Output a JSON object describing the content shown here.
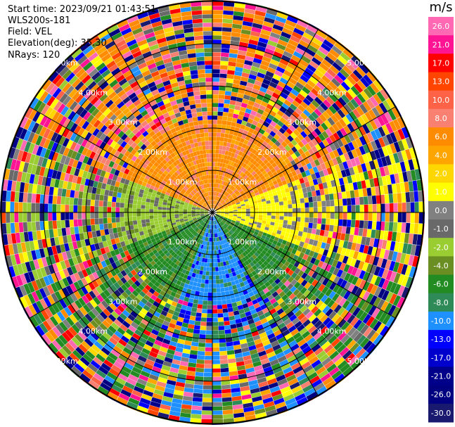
{
  "header": {
    "start_time": "Start time: 2023/09/21 01:43:51",
    "site": "WLS200s-181",
    "field": "Field: VEL",
    "elevation": "Elevation(deg): 35.30",
    "nrays": "NRays: 120"
  },
  "ppi": {
    "range_rings_km": [
      1.0,
      2.0,
      3.0,
      4.0,
      5.0
    ],
    "ring_labels": [
      "1.00km",
      "2.00km",
      "3.00km",
      "4.00km",
      "5.00km"
    ],
    "n_rays": 120
  },
  "colorbar": {
    "unit": "m/s",
    "ticks": [
      "26.0",
      "21.0",
      "17.0",
      "13.0",
      "10.0",
      "8.0",
      "6.0",
      "4.0",
      "2.0",
      "1.0",
      "0.0",
      "-1.0",
      "-2.0",
      "-4.0",
      "-6.0",
      "-8.0",
      "-10.0",
      "-13.0",
      "-17.0",
      "-21.0",
      "-26.0",
      "-30.0"
    ],
    "colors": [
      "#ff69b4",
      "#ff1493",
      "#ff0000",
      "#ff4500",
      "#ff6347",
      "#fa8072",
      "#ff8c00",
      "#ffa500",
      "#ffd700",
      "#ffff00",
      "#808080",
      "#696969",
      "#9acd32",
      "#6b8e23",
      "#228b22",
      "#2e8b57",
      "#1e90ff",
      "#0000ff",
      "#0000cd",
      "#00008b",
      "#000080",
      "#191970"
    ]
  }
}
